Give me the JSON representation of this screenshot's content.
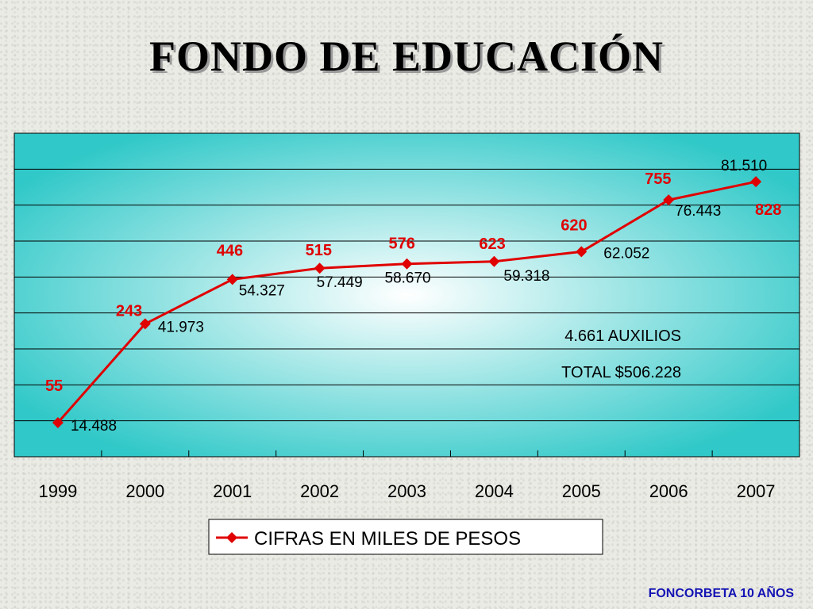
{
  "title": "FONDO DE EDUCACIÓN",
  "footer": "FONCORBETA 10 AÑOS",
  "colors": {
    "line": "#e00000",
    "plot_edge": "#30c8c8",
    "plot_center": "#ffffff",
    "count_label": "#e00000",
    "value_label": "#000000",
    "footer": "#1414b4"
  },
  "chart_data": {
    "type": "line",
    "title": "FONDO DE EDUCACIÓN",
    "categories": [
      "1999",
      "2000",
      "2001",
      "2002",
      "2003",
      "2004",
      "2005",
      "2006",
      "2007"
    ],
    "series": [
      {
        "name": "CIFRAS EN MILES DE PESOS",
        "values": [
          14488,
          41973,
          54327,
          57449,
          58670,
          59318,
          62052,
          76443,
          81510
        ],
        "value_labels": [
          "14.488",
          "41.973",
          "54.327",
          "57.449",
          "58.670",
          "59.318",
          "62.052",
          "76.443",
          "81.510"
        ],
        "marker": "diamond",
        "color": "#e00000"
      }
    ],
    "counts": [
      "55",
      "243",
      "446",
      "515",
      "576",
      "623",
      "620",
      "755",
      "828"
    ],
    "annotations": [
      "4.661 AUXILIOS",
      "TOTAL $506.228"
    ],
    "ylim": [
      5000,
      95000
    ],
    "grid": true,
    "legend": "bottom-center",
    "y_axis_labels_visible": false
  }
}
